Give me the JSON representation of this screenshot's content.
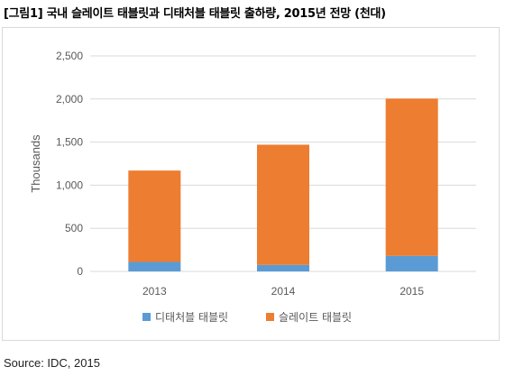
{
  "header": {
    "title": "[그림1] 국내 슬레이트 태블릿과 디태처블 태블릿 출하량, 2015년 전망 (천대)"
  },
  "footer": {
    "source": "Source: IDC, 2015"
  },
  "colors": {
    "detachable": "#5b9bd5",
    "slate": "#ed7d31",
    "grid": "#d9d9d9",
    "axis_text": "#595959"
  },
  "chart_data": {
    "type": "bar",
    "stacked": true,
    "title": "",
    "xlabel": "",
    "ylabel": "Thousands",
    "ylim": [
      0,
      2500
    ],
    "yticks": [
      0,
      500,
      1000,
      1500,
      2000,
      2500
    ],
    "ytick_labels": [
      "0",
      "500",
      "1,000",
      "1,500",
      "2,000",
      "2,500"
    ],
    "categories": [
      "2013",
      "2014",
      "2015"
    ],
    "series": [
      {
        "name": "디태처블 태블릿",
        "values": [
          110,
          75,
          180
        ]
      },
      {
        "name": "슬레이트 태블릿",
        "values": [
          1060,
          1395,
          1825
        ]
      }
    ],
    "grid": true,
    "legend_position": "bottom"
  }
}
